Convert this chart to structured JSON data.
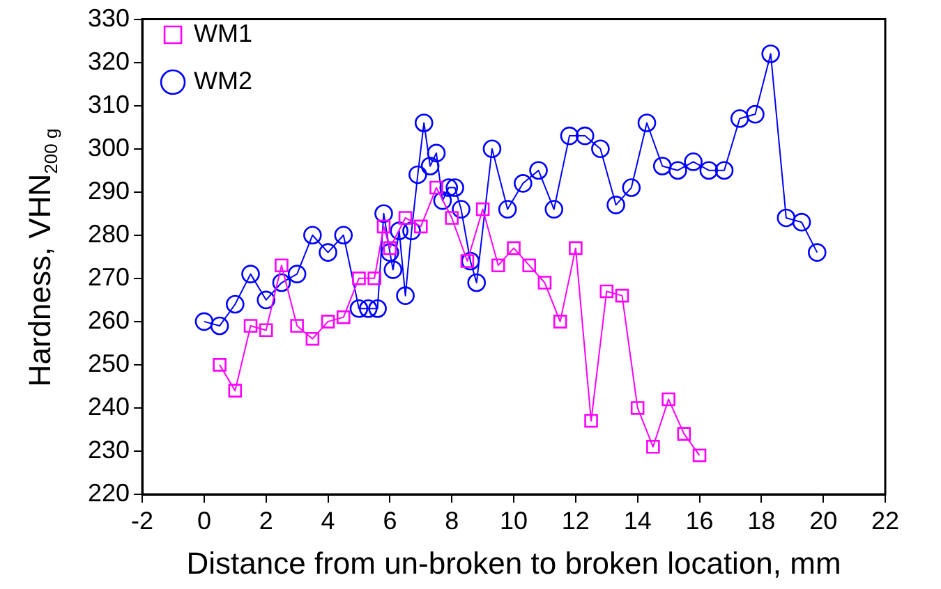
{
  "chart_data": {
    "type": "line",
    "xlabel": "Distance from un-broken to broken location, mm",
    "ylabel": "Hardness, VHN$_{200 g}$",
    "xlim": [
      -2,
      22
    ],
    "xticks": [
      -2,
      0,
      2,
      4,
      6,
      8,
      10,
      12,
      14,
      16,
      18,
      20,
      22
    ],
    "ylim": [
      220,
      330
    ],
    "yticks": [
      220,
      230,
      240,
      250,
      260,
      270,
      280,
      290,
      300,
      310,
      320,
      330
    ],
    "grid": false,
    "legend": "top left",
    "line_style": "solid",
    "series": [
      {
        "name": "WM1",
        "color": "#ff00ff",
        "marker": "square",
        "x": [
          0.5,
          1,
          1.5,
          2,
          2.5,
          3,
          3.5,
          4,
          4.5,
          5,
          5.5,
          5.8,
          6,
          6.5,
          7,
          7.5,
          8,
          8.5,
          9,
          9.5,
          10,
          10.5,
          11,
          11.5,
          12,
          12.5,
          13,
          13.5,
          14,
          14.5,
          15,
          15.5,
          16
        ],
        "values": [
          250,
          244,
          259,
          258,
          273,
          259,
          256,
          260,
          261,
          270,
          270,
          282,
          277,
          284,
          282,
          291,
          284,
          274,
          286,
          273,
          277,
          273,
          269,
          260,
          277,
          237,
          267,
          266,
          240,
          231,
          242,
          234,
          229
        ]
      },
      {
        "name": "WM2",
        "color": "#0000ff",
        "marker": "circle",
        "x": [
          0,
          0.5,
          1,
          1.5,
          2,
          2.5,
          3,
          3.5,
          4,
          4.5,
          5,
          5.3,
          5.6,
          5.8,
          6,
          6.1,
          6.3,
          6.5,
          6.7,
          6.9,
          7.1,
          7.3,
          7.5,
          7.7,
          7.9,
          8.1,
          8.3,
          8.6,
          8.8,
          9.3,
          9.8,
          10.3,
          10.8,
          11.3,
          11.8,
          12.3,
          12.8,
          13.3,
          13.8,
          14.3,
          14.8,
          15.3,
          15.8,
          16.3,
          16.8,
          17.3,
          17.8,
          18.3,
          18.8,
          19.3,
          19.8
        ],
        "values": [
          260,
          259,
          264,
          271,
          265,
          269,
          271,
          280,
          276,
          280,
          263,
          263,
          263,
          285,
          276,
          272,
          281,
          266,
          281,
          294,
          306,
          296,
          299,
          288,
          291,
          291,
          286,
          274,
          269,
          300,
          286,
          292,
          295,
          286,
          303,
          303,
          300,
          287,
          291,
          306,
          296,
          295,
          297,
          295,
          295,
          307,
          308,
          322,
          284,
          283,
          276
        ]
      }
    ]
  }
}
